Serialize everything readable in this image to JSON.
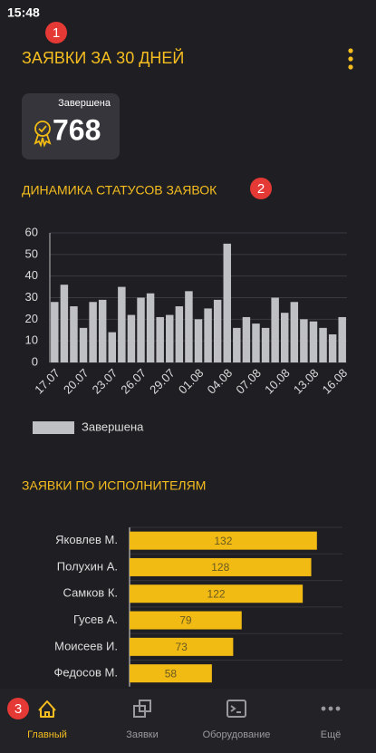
{
  "status_bar": {
    "time": "15:48"
  },
  "badges": [
    "1",
    "2",
    "3"
  ],
  "header": {
    "title": "ЗАЯВКИ ЗА 30 ДНЕЙ"
  },
  "summary": {
    "label": "Завершена",
    "value": 768
  },
  "chart_data": [
    {
      "type": "bar",
      "title": "ДИНАМИКА СТАТУСОВ ЗАЯВОК",
      "categories": [
        "17.07",
        null,
        null,
        "20.07",
        null,
        null,
        "23.07",
        null,
        null,
        "26.07",
        null,
        null,
        "29.07",
        null,
        null,
        "01.08",
        null,
        null,
        "04.08",
        null,
        null,
        "07.08",
        null,
        null,
        "10.08",
        null,
        null,
        "13.08",
        null,
        null,
        "16.08"
      ],
      "series": [
        {
          "name": "Завершена",
          "color": "#bfc0c4",
          "values": [
            28,
            36,
            26,
            16,
            28,
            29,
            14,
            35,
            22,
            30,
            32,
            21,
            22,
            26,
            33,
            20,
            25,
            29,
            55,
            16,
            21,
            18,
            16,
            30,
            23,
            28,
            20,
            19,
            16,
            13,
            21
          ]
        }
      ],
      "ylim": [
        0,
        60
      ],
      "yticks": [
        0,
        10,
        20,
        30,
        40,
        50,
        60
      ],
      "grid": true,
      "legend": "bottom-left"
    },
    {
      "type": "hbar",
      "title": "ЗАЯВКИ ПО ИСПОЛНИТЕЛЯМ",
      "categories": [
        "Яковлев М.",
        "Полухин А.",
        "Самков К.",
        "Гусев А.",
        "Моисеев И.",
        "Федосов М."
      ],
      "values": [
        132,
        128,
        122,
        79,
        73,
        58
      ],
      "color": "#f2bb14",
      "xlim": [
        0,
        150
      ]
    }
  ],
  "nav": {
    "items": [
      {
        "label": "Главный",
        "active": true
      },
      {
        "label": "Заявки",
        "active": false
      },
      {
        "label": "Оборудование",
        "active": false
      },
      {
        "label": "Ещё",
        "active": false
      }
    ]
  }
}
